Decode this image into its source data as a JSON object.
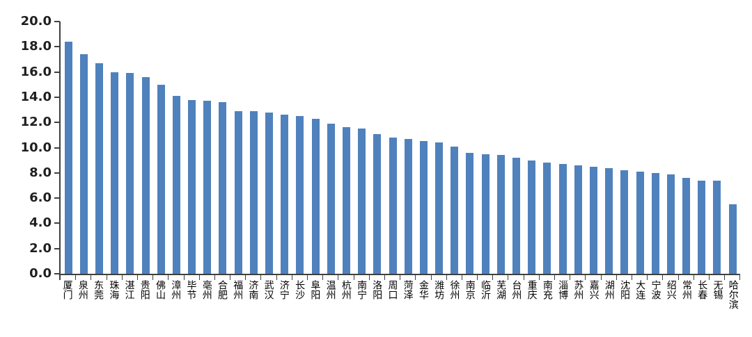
{
  "page": {
    "background_color": "#ffffff"
  },
  "chart_data": {
    "type": "bar",
    "title": "",
    "xlabel": "",
    "ylabel": "",
    "ylim": [
      0,
      20
    ],
    "ytick_step": 2,
    "ytick_labels": [
      "20.0",
      "18.0",
      "16.0",
      "14.0",
      "12.0",
      "10.0",
      "8.0",
      "6.0",
      "4.0",
      "2.0",
      "0.0"
    ],
    "grid": "off",
    "legend_position": "none",
    "bar_color": "#4F81BD",
    "axis_color": "#3f3f3f",
    "categories": [
      "厦门",
      "泉州",
      "东莞",
      "珠海",
      "湛江",
      "贵阳",
      "佛山",
      "漳州",
      "毕节",
      "亳州",
      "合肥",
      "福州",
      "济南",
      "武汉",
      "济宁",
      "长沙",
      "阜阳",
      "温州",
      "杭州",
      "南宁",
      "洛阳",
      "周口",
      "菏泽",
      "金华",
      "潍坊",
      "徐州",
      "南京",
      "临沂",
      "芜湖",
      "台州",
      "重庆",
      "南充",
      "淄博",
      "苏州",
      "嘉兴",
      "湖州",
      "沈阳",
      "大连",
      "宁波",
      "绍兴",
      "常州",
      "长春",
      "无锡",
      "哈尔滨"
    ],
    "values": [
      18.4,
      17.4,
      16.7,
      16.0,
      15.9,
      15.6,
      15.0,
      14.1,
      13.8,
      13.7,
      13.6,
      12.9,
      12.9,
      12.8,
      12.6,
      12.5,
      12.3,
      11.9,
      11.6,
      11.5,
      11.1,
      10.8,
      10.7,
      10.5,
      10.4,
      10.1,
      9.6,
      9.5,
      9.4,
      9.2,
      9.0,
      8.8,
      8.7,
      8.6,
      8.5,
      8.4,
      8.2,
      8.1,
      8.0,
      7.9,
      7.6,
      7.4,
      7.4,
      5.5
    ]
  }
}
